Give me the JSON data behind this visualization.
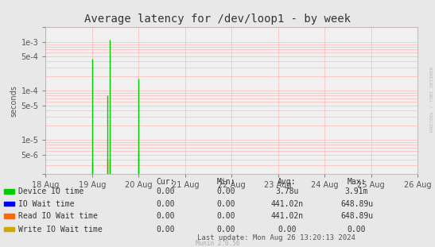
{
  "title": "Average latency for /dev/loop1 - by week",
  "ylabel": "seconds",
  "background_color": "#e8e8e8",
  "plot_bg_color": "#f0f0f0",
  "grid_color": "#ffaaaa",
  "xlim_start": 1724025600,
  "xlim_end": 1724716800,
  "ylim_min": 2e-06,
  "ylim_max": 0.002,
  "series": [
    {
      "label": "Device IO time",
      "color": "#00cc00",
      "spikes": [
        [
          1724112000,
          0.00045
        ],
        [
          1724140800,
          8e-05
        ],
        [
          1724144400,
          0.0011
        ],
        [
          1724198400,
          0.00018
        ]
      ]
    },
    {
      "label": "IO Wait time",
      "color": "#0000ff",
      "spikes": []
    },
    {
      "label": "Read IO Wait time",
      "color": "#ff6600",
      "spikes": [
        [
          1724112000,
          3.5e-06
        ],
        [
          1724140800,
          4e-06
        ],
        [
          1724144400,
          4e-06
        ],
        [
          1724198400,
          6e-06
        ]
      ]
    },
    {
      "label": "Write IO Wait time",
      "color": "#ccaa00",
      "spikes": []
    }
  ],
  "x_tick_labels": [
    "18 Aug",
    "19 Aug",
    "20 Aug",
    "21 Aug",
    "22 Aug",
    "23 Aug",
    "24 Aug",
    "25 Aug",
    "26 Aug"
  ],
  "x_tick_positions": [
    1724025600,
    1724112000,
    1724198400,
    1724284800,
    1724371200,
    1724457600,
    1724544000,
    1724630400,
    1724716800
  ],
  "legend_row_labels": [
    "Device IO time",
    "IO Wait time",
    "Read IO Wait time",
    "Write IO Wait time"
  ],
  "legend_row_colors": [
    "#00cc00",
    "#0000ff",
    "#ff6600",
    "#ccaa00"
  ],
  "legend_col_headers": [
    "Cur:",
    "Min:",
    "Avg:",
    "Max:"
  ],
  "legend_values": [
    [
      "0.00",
      "0.00",
      "3.78u",
      "3.91m"
    ],
    [
      "0.00",
      "0.00",
      "441.02n",
      "648.89u"
    ],
    [
      "0.00",
      "0.00",
      "441.02n",
      "648.89u"
    ],
    [
      "0.00",
      "0.00",
      "0.00",
      "0.00"
    ]
  ],
  "footer": "Last update: Mon Aug 26 13:20:13 2024",
  "watermark": "RRDTOOL / TOBI OETIKER",
  "munin_version": "Munin 2.0.56",
  "title_fontsize": 10,
  "axis_fontsize": 7,
  "legend_fontsize": 7
}
